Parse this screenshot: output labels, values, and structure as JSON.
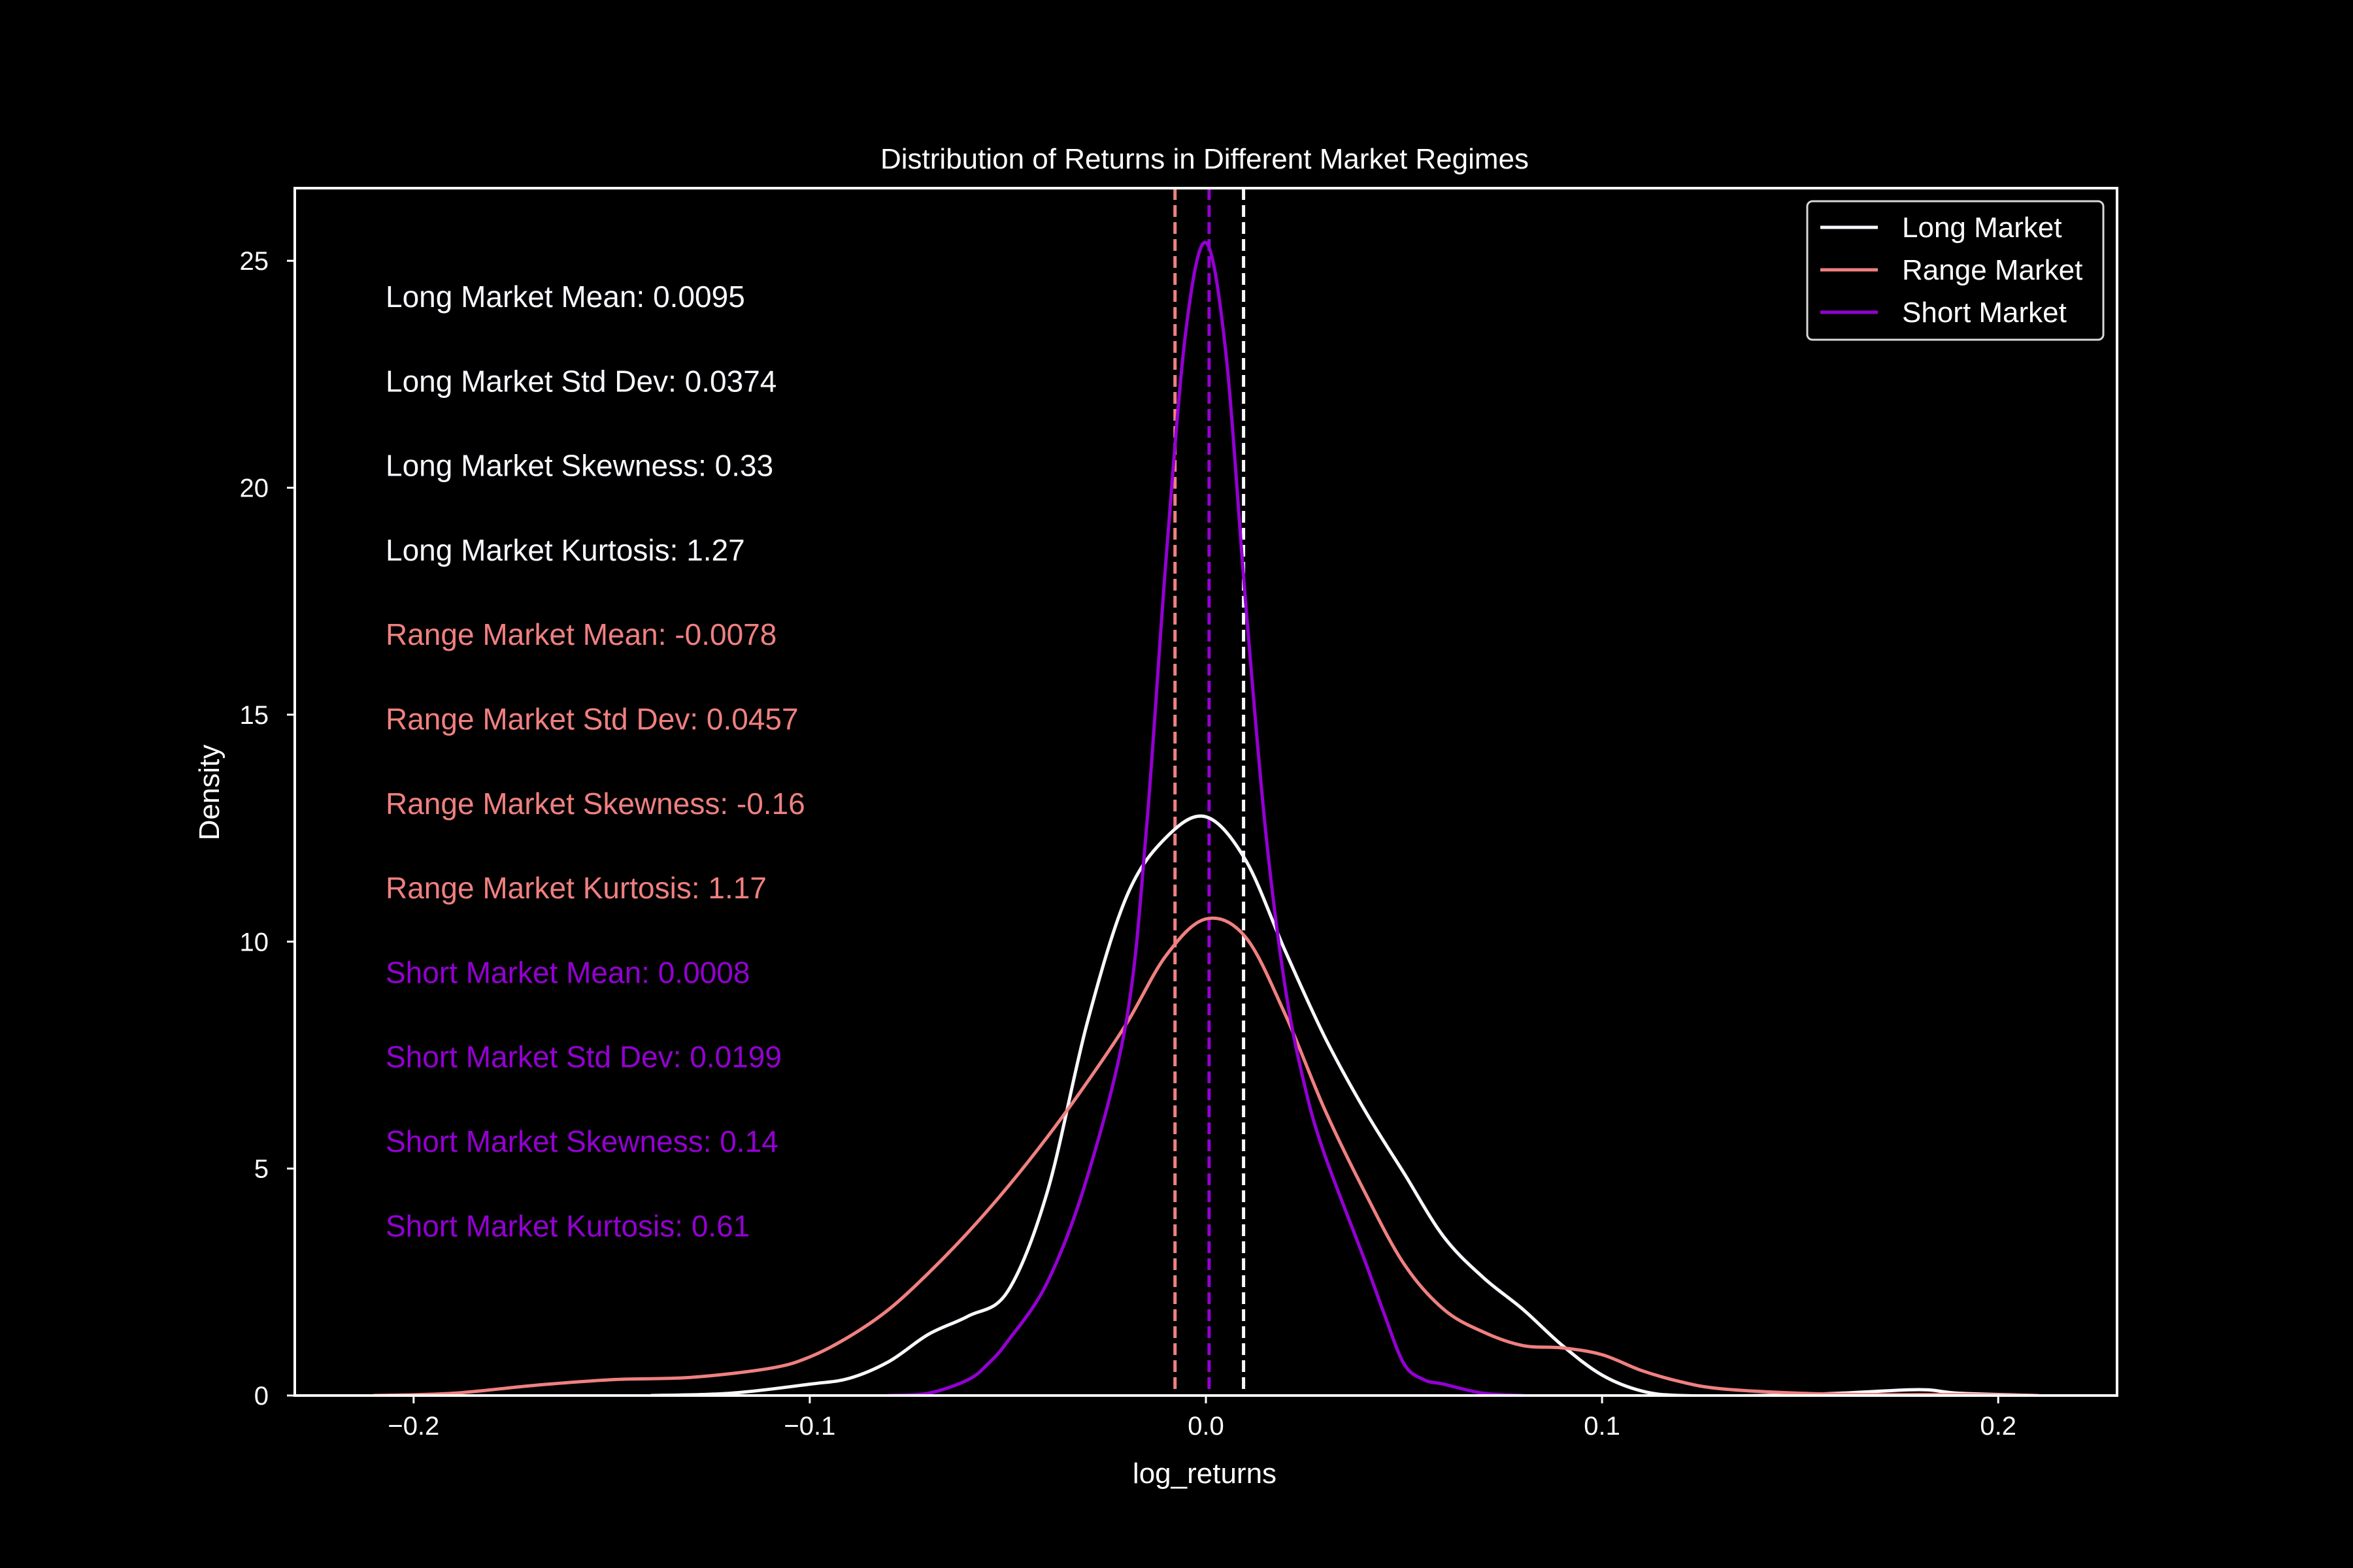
{
  "chart_data": {
    "type": "line",
    "title": "Distribution of Returns in Different Market Regimes",
    "xlabel": "log_returns",
    "ylabel": "Density",
    "xlim": [
      -0.23,
      0.23
    ],
    "ylim": [
      0,
      26.6
    ],
    "x_ticks": [
      -0.2,
      -0.1,
      0.0,
      0.1,
      0.2
    ],
    "x_tick_labels": [
      "−0.2",
      "−0.1",
      "0.0",
      "0.1",
      "0.2"
    ],
    "y_ticks": [
      0,
      5,
      10,
      15,
      20,
      25
    ],
    "y_tick_labels": [
      "0",
      "5",
      "10",
      "15",
      "20",
      "25"
    ],
    "grid": false,
    "legend_position": "top-right",
    "background": "#000000",
    "series": [
      {
        "name": "Long Market",
        "color": "#f8f8ff",
        "mean": 0.0095,
        "x": [
          -0.14,
          -0.12,
          -0.1,
          -0.09,
          -0.08,
          -0.07,
          -0.06,
          -0.05,
          -0.04,
          -0.03,
          -0.02,
          -0.01,
          0.0,
          0.01,
          0.02,
          0.03,
          0.04,
          0.05,
          0.06,
          0.07,
          0.08,
          0.09,
          0.1,
          0.11,
          0.12,
          0.14,
          0.16,
          0.18,
          0.19,
          0.21
        ],
        "y": [
          0.0,
          0.05,
          0.25,
          0.38,
          0.75,
          1.35,
          1.75,
          2.3,
          4.5,
          8.2,
          11.0,
          12.3,
          12.75,
          11.8,
          9.8,
          7.9,
          6.3,
          4.9,
          3.5,
          2.6,
          1.9,
          1.1,
          0.45,
          0.1,
          0.0,
          0.0,
          0.05,
          0.13,
          0.05,
          0.0
        ]
      },
      {
        "name": "Range Market",
        "color": "#f08080",
        "mean": -0.0078,
        "x": [
          -0.21,
          -0.19,
          -0.17,
          -0.15,
          -0.13,
          -0.11,
          -0.1,
          -0.09,
          -0.08,
          -0.07,
          -0.06,
          -0.05,
          -0.04,
          -0.03,
          -0.02,
          -0.01,
          0.0,
          0.01,
          0.02,
          0.03,
          0.04,
          0.05,
          0.06,
          0.07,
          0.08,
          0.09,
          0.1,
          0.11,
          0.12,
          0.13,
          0.15,
          0.17,
          0.19,
          0.21
        ],
        "y": [
          0.0,
          0.05,
          0.22,
          0.35,
          0.4,
          0.6,
          0.85,
          1.3,
          1.9,
          2.7,
          3.6,
          4.6,
          5.7,
          6.9,
          8.2,
          9.7,
          10.5,
          10.1,
          8.4,
          6.3,
          4.5,
          2.9,
          1.9,
          1.4,
          1.1,
          1.05,
          0.9,
          0.55,
          0.3,
          0.15,
          0.05,
          0.02,
          0.02,
          0.0
        ]
      },
      {
        "name": "Short Market",
        "color": "#9400d3",
        "mean": 0.0008,
        "x": [
          -0.08,
          -0.07,
          -0.06,
          -0.055,
          -0.05,
          -0.04,
          -0.03,
          -0.02,
          -0.015,
          -0.01,
          -0.005,
          0.0,
          0.005,
          0.01,
          0.015,
          0.02,
          0.025,
          0.03,
          0.04,
          0.045,
          0.05,
          0.055,
          0.06,
          0.07,
          0.08
        ],
        "y": [
          0.0,
          0.05,
          0.35,
          0.7,
          1.2,
          2.5,
          4.8,
          8.3,
          12.5,
          18.5,
          23.5,
          25.4,
          23.0,
          17.5,
          12.5,
          9.0,
          6.8,
          5.3,
          3.0,
          1.8,
          0.7,
          0.35,
          0.25,
          0.05,
          0.0
        ]
      }
    ]
  },
  "stats": [
    {
      "text": "Long Market Mean: 0.0095",
      "color": "#f8f8ff"
    },
    {
      "text": "Long Market Std Dev: 0.0374",
      "color": "#f8f8ff"
    },
    {
      "text": "Long Market Skewness: 0.33",
      "color": "#f8f8ff"
    },
    {
      "text": "Long Market Kurtosis: 1.27",
      "color": "#f8f8ff"
    },
    {
      "text": "Range Market Mean: -0.0078",
      "color": "#f08080"
    },
    {
      "text": "Range Market Std Dev: 0.0457",
      "color": "#f08080"
    },
    {
      "text": "Range Market Skewness: -0.16",
      "color": "#f08080"
    },
    {
      "text": "Range Market Kurtosis: 1.17",
      "color": "#f08080"
    },
    {
      "text": "Short Market Mean: 0.0008",
      "color": "#9400d3"
    },
    {
      "text": "Short Market Std Dev: 0.0199",
      "color": "#9400d3"
    },
    {
      "text": "Short Market Skewness: 0.14",
      "color": "#9400d3"
    },
    {
      "text": "Short Market Kurtosis: 0.61",
      "color": "#9400d3"
    }
  ]
}
